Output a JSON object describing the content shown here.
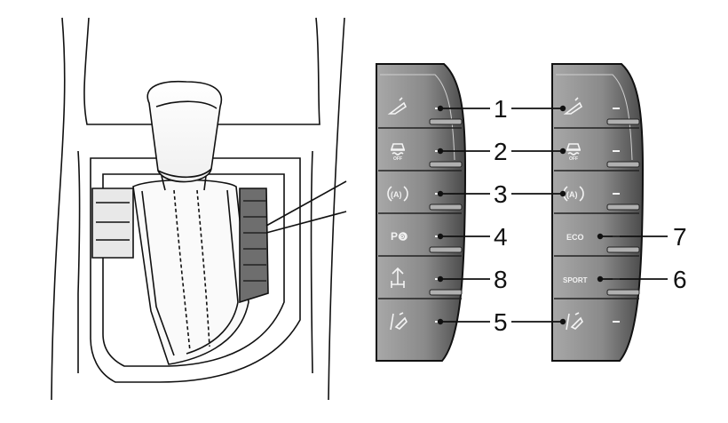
{
  "left_panel_buttons": [
    {
      "icon": "hill-descent-icon"
    },
    {
      "icon": "traction-off-icon",
      "sublabel": "OFF"
    },
    {
      "icon": "auto-stop-start-icon",
      "label": "(A)"
    },
    {
      "icon": "park-assist-icon",
      "label": "P⊚"
    },
    {
      "icon": "terrain-mode-icon"
    },
    {
      "icon": "lane-assist-icon"
    }
  ],
  "right_panel_buttons": [
    {
      "icon": "hill-descent-icon"
    },
    {
      "icon": "traction-off-icon",
      "sublabel": "OFF"
    },
    {
      "icon": "auto-stop-start-icon",
      "label": "(A)"
    },
    {
      "label": "ECO"
    },
    {
      "label": "SPORT"
    },
    {
      "icon": "lane-assist-icon"
    }
  ],
  "callouts_center": [
    "1",
    "2",
    "3",
    "4",
    "8",
    "5"
  ],
  "callouts_right": [
    "7",
    "6"
  ],
  "colors": {
    "panel_dark": "#3a3a3a",
    "panel_mid": "#7a7a7a",
    "panel_light": "#a8a8a8",
    "line": "#111111"
  }
}
